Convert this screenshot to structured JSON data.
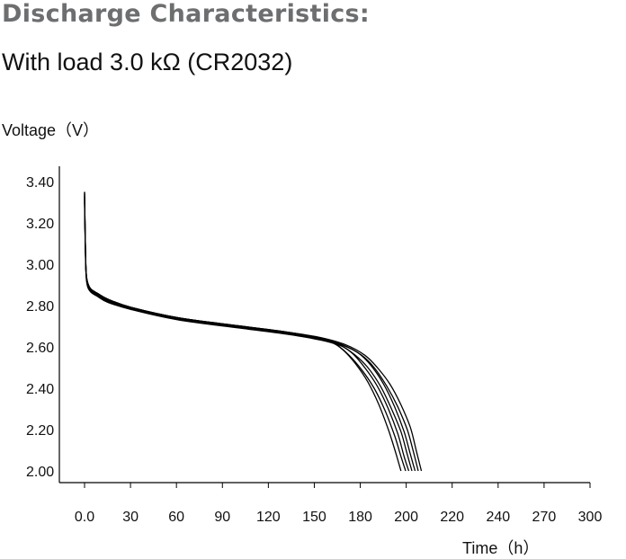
{
  "header": {
    "title": "Discharge Characteristics:",
    "subtitle": "With load 3.0 kΩ (CR2032)"
  },
  "chart_data": {
    "type": "line",
    "title": "Discharge Characteristics:",
    "subtitle": "With load 3.0 kΩ (CR2032)",
    "ylabel": "Voltage（V）",
    "xlabel": "Time（h）",
    "x_tick_labels": [
      "0.0",
      "30",
      "60",
      "90",
      "120",
      "150",
      "180",
      "200",
      "220",
      "240",
      "270",
      "300"
    ],
    "y_tick_labels": [
      "2.00",
      "2.20",
      "2.40",
      "2.60",
      "2.80",
      "3.00",
      "3.20",
      "3.40"
    ],
    "xlim": [
      0,
      300
    ],
    "ylim": [
      2.0,
      3.4
    ],
    "grid": false,
    "legend": "none",
    "line_color": "#000000",
    "series": [
      {
        "x": [
          0,
          0.5,
          1,
          2,
          4,
          8,
          15,
          30,
          60,
          100,
          130,
          150,
          158,
          165,
          172,
          180,
          187,
          193,
          198,
          201
        ],
        "y": [
          3.35,
          3.1,
          2.96,
          2.91,
          2.88,
          2.86,
          2.83,
          2.79,
          2.74,
          2.7,
          2.67,
          2.64,
          2.62,
          2.58,
          2.52,
          2.43,
          2.32,
          2.2,
          2.08,
          2.0
        ]
      },
      {
        "x": [
          0,
          0.5,
          1,
          2,
          4,
          8,
          15,
          30,
          60,
          100,
          130,
          150,
          160,
          168,
          176,
          184,
          191,
          197,
          201,
          204
        ],
        "y": [
          3.3,
          3.08,
          2.95,
          2.9,
          2.87,
          2.85,
          2.82,
          2.785,
          2.735,
          2.695,
          2.665,
          2.637,
          2.61,
          2.56,
          2.49,
          2.4,
          2.29,
          2.17,
          2.07,
          2.0
        ]
      },
      {
        "x": [
          0,
          0.5,
          1,
          2,
          4,
          8,
          15,
          30,
          60,
          100,
          130,
          150,
          162,
          170,
          178,
          186,
          193,
          199,
          203,
          206
        ],
        "y": [
          3.33,
          3.09,
          2.95,
          2.9,
          2.875,
          2.855,
          2.825,
          2.79,
          2.74,
          2.698,
          2.668,
          2.64,
          2.61,
          2.57,
          2.5,
          2.41,
          2.3,
          2.18,
          2.07,
          2.0
        ]
      },
      {
        "x": [
          0,
          0.5,
          1,
          2,
          4,
          8,
          15,
          30,
          60,
          100,
          130,
          150,
          163,
          172,
          180,
          188,
          195,
          201,
          205,
          208
        ],
        "y": [
          3.31,
          3.07,
          2.94,
          2.89,
          2.865,
          2.845,
          2.815,
          2.78,
          2.73,
          2.69,
          2.66,
          2.633,
          2.605,
          2.56,
          2.5,
          2.41,
          2.3,
          2.19,
          2.08,
          2.0
        ]
      },
      {
        "x": [
          0,
          0.5,
          1,
          2,
          4,
          8,
          15,
          30,
          60,
          100,
          130,
          150,
          164,
          174,
          182,
          190,
          197,
          203,
          207,
          210
        ],
        "y": [
          3.34,
          3.1,
          2.96,
          2.91,
          2.88,
          2.86,
          2.83,
          2.79,
          2.74,
          2.7,
          2.67,
          2.642,
          2.61,
          2.57,
          2.51,
          2.42,
          2.31,
          2.19,
          2.08,
          2.0
        ]
      },
      {
        "x": [
          0,
          0.5,
          1,
          2,
          4,
          8,
          15,
          30,
          60,
          100,
          130,
          150,
          165,
          176,
          184,
          192,
          199,
          205,
          209,
          212
        ],
        "y": [
          3.32,
          3.08,
          2.95,
          2.9,
          2.87,
          2.85,
          2.82,
          2.785,
          2.735,
          2.695,
          2.665,
          2.638,
          2.605,
          2.56,
          2.5,
          2.41,
          2.31,
          2.2,
          2.09,
          2.0
        ]
      },
      {
        "x": [
          0,
          0.5,
          1,
          2,
          4,
          8,
          15,
          30,
          60,
          100,
          130,
          150,
          166,
          178,
          186,
          194,
          201,
          207,
          211,
          214
        ],
        "y": [
          3.35,
          3.1,
          2.96,
          2.91,
          2.88,
          2.86,
          2.83,
          2.79,
          2.74,
          2.7,
          2.67,
          2.645,
          2.61,
          2.56,
          2.5,
          2.42,
          2.32,
          2.21,
          2.09,
          2.0
        ]
      }
    ]
  }
}
